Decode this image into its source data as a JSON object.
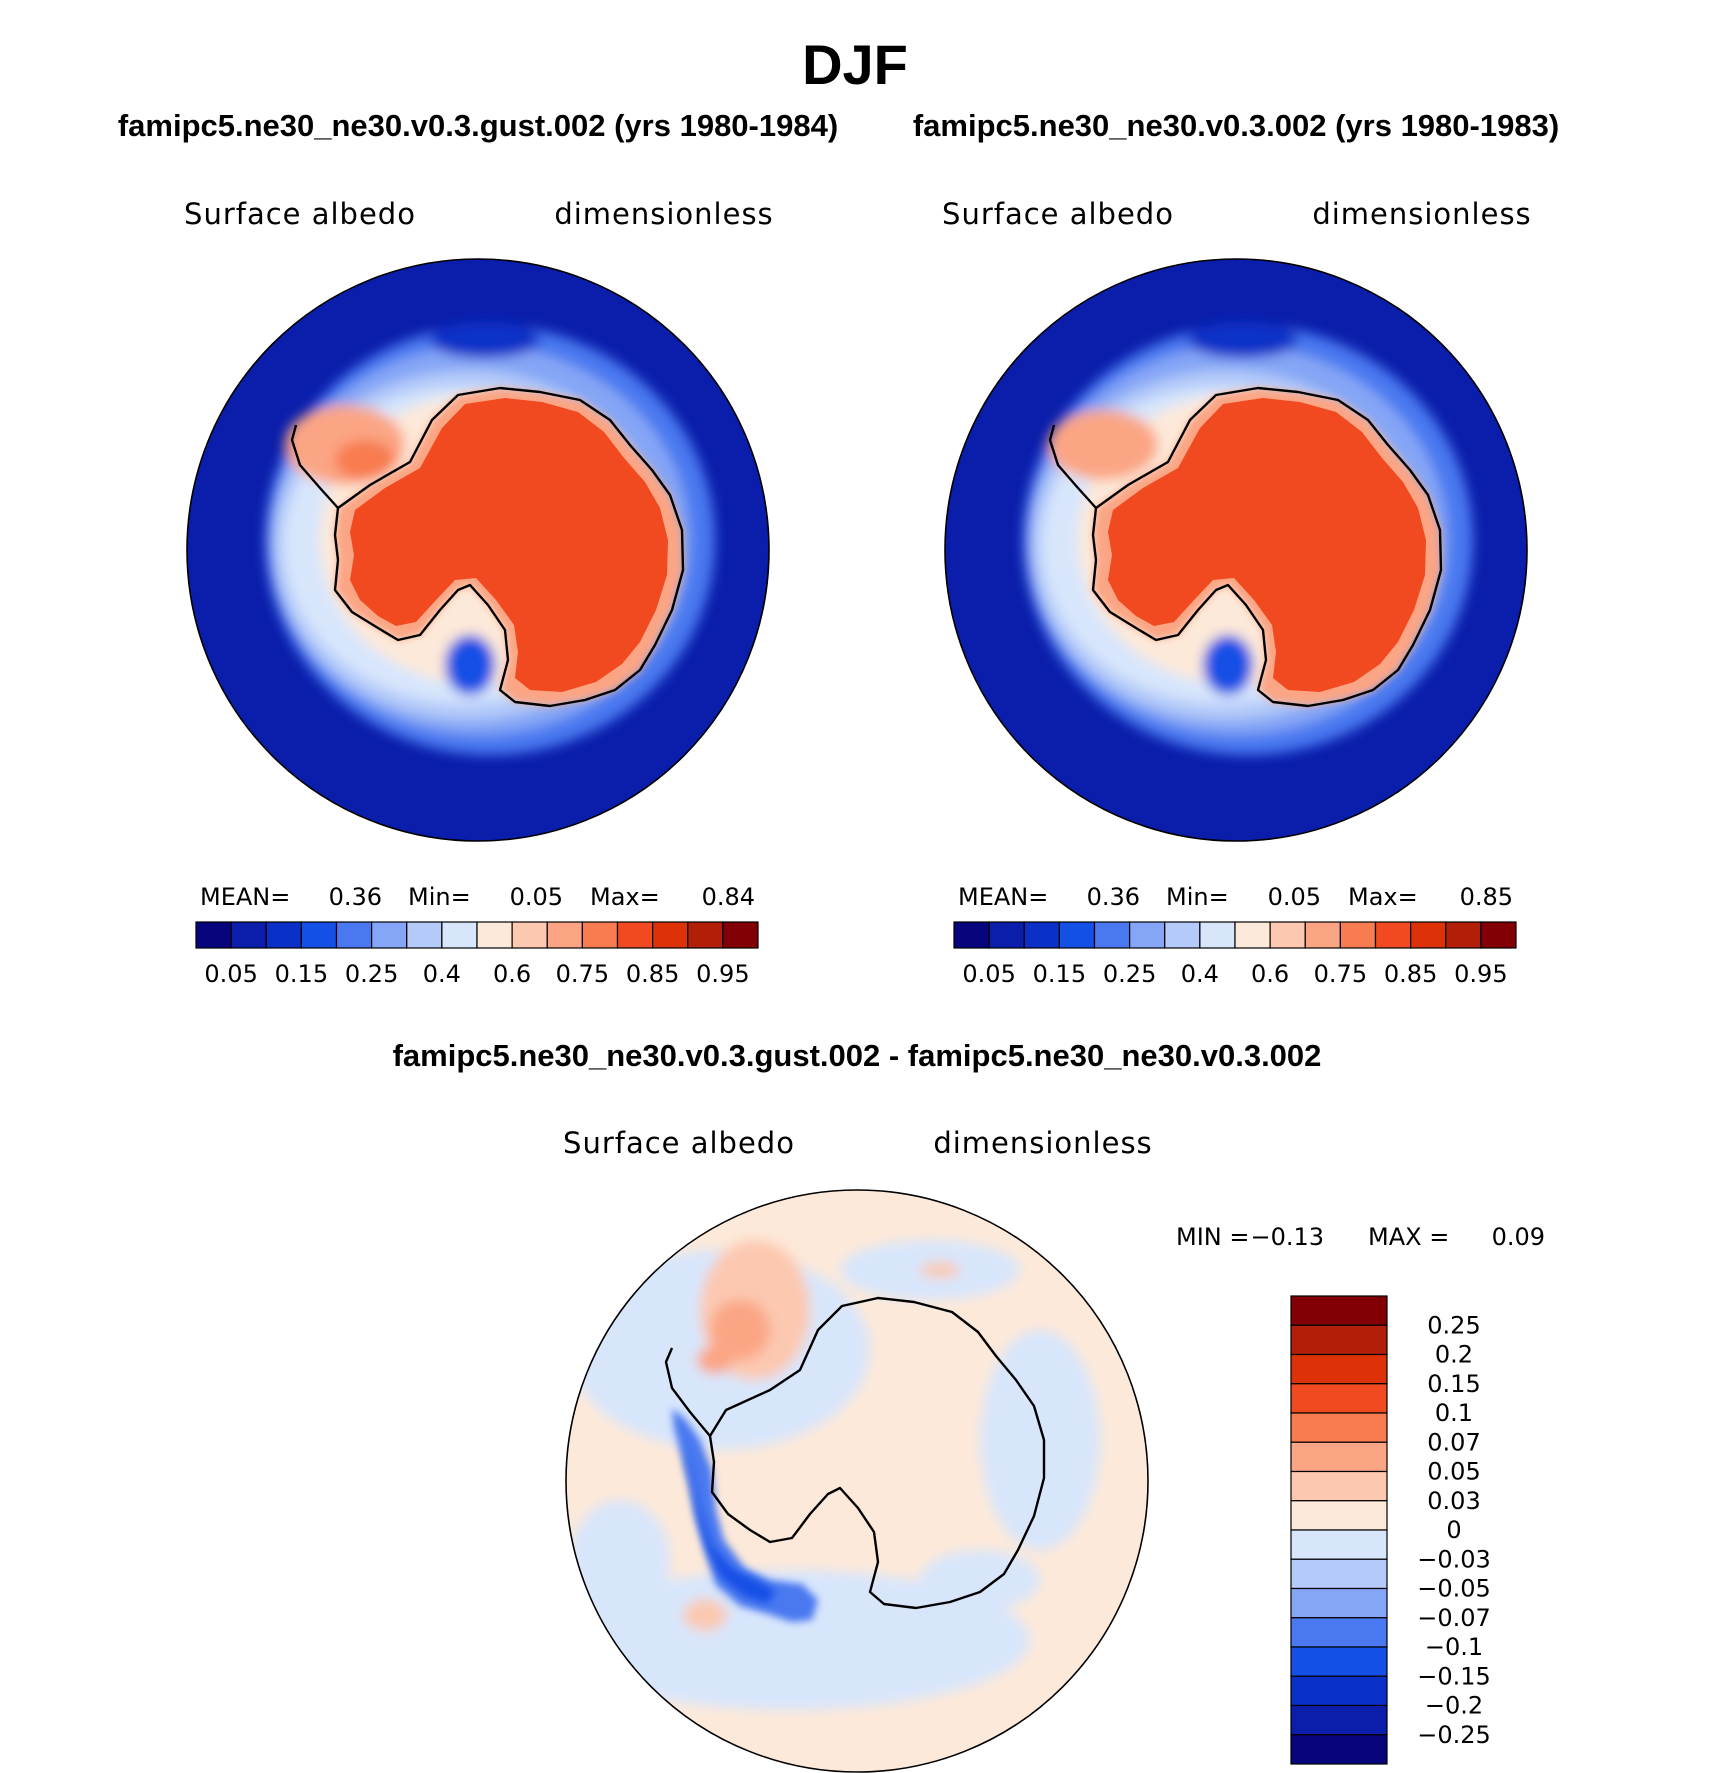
{
  "page_title": "DJF",
  "panels": [
    {
      "id": "left",
      "case_title": "famipc5.ne30_ne30.v0.3.gust.002 (yrs 1980-1984)",
      "variable": "Surface albedo",
      "units": "dimensionless",
      "stats": {
        "mean_label": "MEAN=",
        "mean": "0.36",
        "min_label": "Min=",
        "min": "0.05",
        "max_label": "Max=",
        "max": "0.84"
      }
    },
    {
      "id": "right",
      "case_title": "famipc5.ne30_ne30.v0.3.002 (yrs 1980-1983)",
      "variable": "Surface albedo",
      "units": "dimensionless",
      "stats": {
        "mean_label": "MEAN=",
        "mean": "0.36",
        "min_label": "Min=",
        "min": "0.05",
        "max_label": "Max=",
        "max": "0.85"
      }
    }
  ],
  "diff_panel": {
    "title": "famipc5.ne30_ne30.v0.3.gust.002 - famipc5.ne30_ne30.v0.3.002",
    "variable": "Surface albedo",
    "units": "dimensionless",
    "stats": {
      "min_label": "MIN =",
      "min": "−0.13",
      "max_label": "MAX =",
      "max": "0.09"
    }
  },
  "chart_data": [
    {
      "type": "heatmap",
      "projection": "south polar stereographic",
      "title": "famipc5.ne30_ne30.v0.3.gust.002 (yrs 1980-1984)",
      "variable": "Surface albedo",
      "units": "dimensionless",
      "mean": 0.36,
      "min": 0.05,
      "max": 0.84,
      "colorbar": {
        "orientation": "horizontal",
        "levels": [
          0.05,
          0.1,
          0.15,
          0.2,
          0.25,
          0.3,
          0.4,
          0.5,
          0.6,
          0.7,
          0.75,
          0.8,
          0.85,
          0.9,
          0.95
        ],
        "tick_labels": [
          "0.05",
          "0.15",
          "0.25",
          "0.4",
          "0.6",
          "0.75",
          "0.85",
          "0.95"
        ],
        "colors": [
          "#07047c",
          "#0a1eab",
          "#0a30c8",
          "#1450e6",
          "#4a78f0",
          "#85a6f6",
          "#b4cbf9",
          "#d8e6fc",
          "#fde9d9",
          "#fcc8b0",
          "#fba584",
          "#f87c50",
          "#f14a20",
          "#dd3108",
          "#b21f08",
          "#820005"
        ]
      }
    },
    {
      "type": "heatmap",
      "projection": "south polar stereographic",
      "title": "famipc5.ne30_ne30.v0.3.002 (yrs 1980-1983)",
      "variable": "Surface albedo",
      "units": "dimensionless",
      "mean": 0.36,
      "min": 0.05,
      "max": 0.85,
      "colorbar": {
        "orientation": "horizontal",
        "levels": [
          0.05,
          0.1,
          0.15,
          0.2,
          0.25,
          0.3,
          0.4,
          0.5,
          0.6,
          0.7,
          0.75,
          0.8,
          0.85,
          0.9,
          0.95
        ],
        "tick_labels": [
          "0.05",
          "0.15",
          "0.25",
          "0.4",
          "0.6",
          "0.75",
          "0.85",
          "0.95"
        ],
        "colors": [
          "#07047c",
          "#0a1eab",
          "#0a30c8",
          "#1450e6",
          "#4a78f0",
          "#85a6f6",
          "#b4cbf9",
          "#d8e6fc",
          "#fde9d9",
          "#fcc8b0",
          "#fba584",
          "#f87c50",
          "#f14a20",
          "#dd3108",
          "#b21f08",
          "#820005"
        ]
      }
    },
    {
      "type": "heatmap",
      "projection": "south polar stereographic",
      "title": "famipc5.ne30_ne30.v0.3.gust.002 - famipc5.ne30_ne30.v0.3.002",
      "variable": "Surface albedo",
      "units": "dimensionless",
      "min": -0.13,
      "max": 0.09,
      "colorbar": {
        "orientation": "vertical",
        "levels": [
          0.25,
          0.2,
          0.15,
          0.1,
          0.07,
          0.05,
          0.03,
          0,
          -0.03,
          -0.05,
          -0.07,
          -0.1,
          -0.15,
          -0.2,
          -0.25
        ],
        "tick_labels": [
          "0.25",
          "0.2",
          "0.15",
          "0.1",
          "0.07",
          "0.05",
          "0.03",
          "0",
          "−0.03",
          "−0.05",
          "−0.07",
          "−0.1",
          "−0.15",
          "−0.2",
          "−0.25"
        ],
        "colors": [
          "#820005",
          "#b21f08",
          "#dd3108",
          "#f14a20",
          "#f87c50",
          "#fba584",
          "#fcc8b0",
          "#fde9d9",
          "#d8e6fc",
          "#b4cbf9",
          "#85a6f6",
          "#4a78f0",
          "#1450e6",
          "#0a30c8",
          "#0a1eab",
          "#07047c"
        ]
      }
    }
  ]
}
